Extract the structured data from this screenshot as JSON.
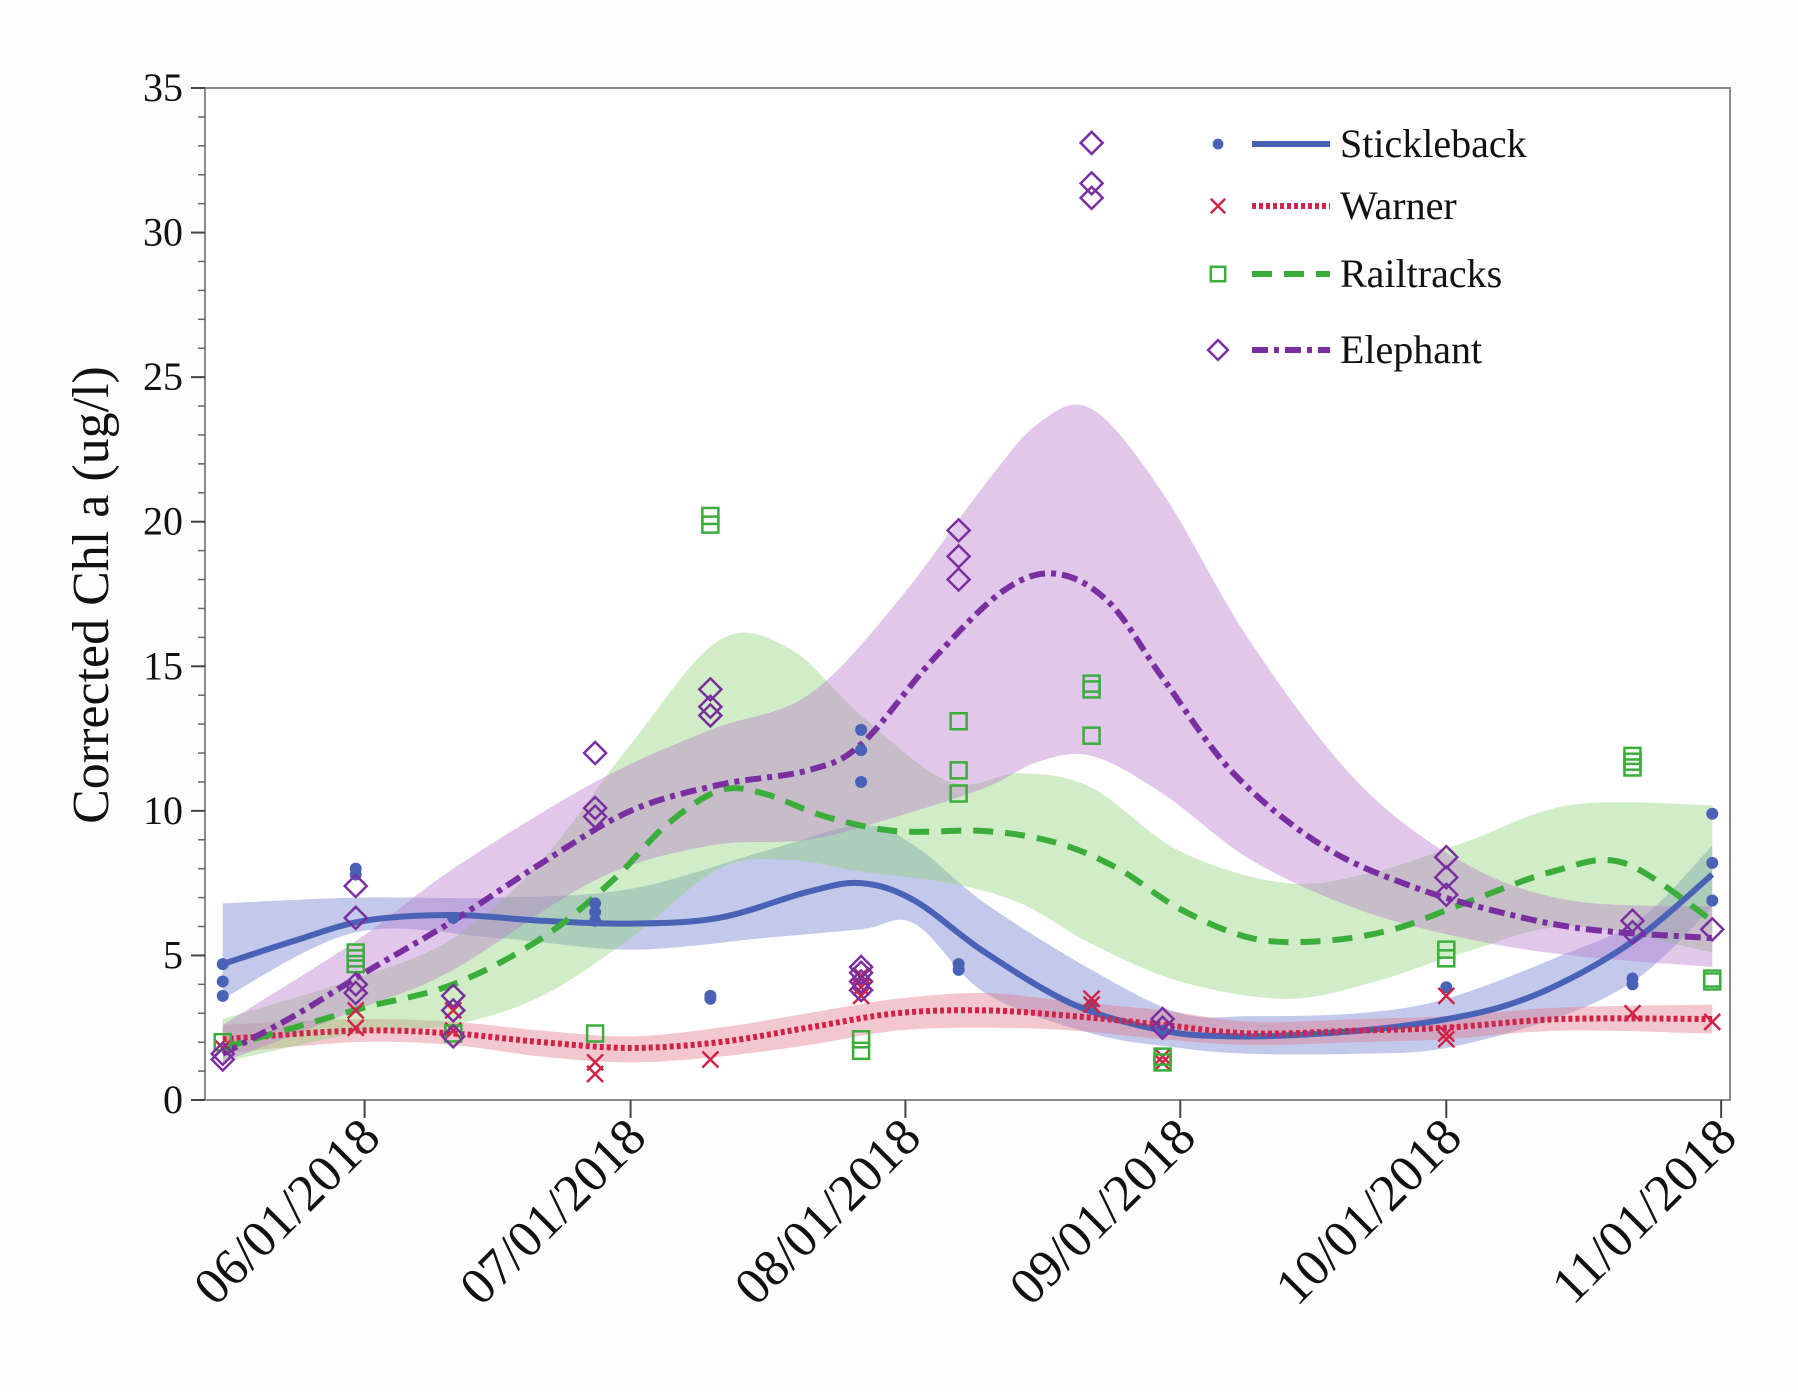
{
  "chart_data": {
    "type": "scatter",
    "title": "",
    "xlabel": "",
    "ylabel": "Corrected Chl a (ug/l)",
    "ylim": [
      0,
      35
    ],
    "xlim_days": [
      -18,
      154
    ],
    "x_ticks": [
      {
        "label": "06/01/2018",
        "day": 0
      },
      {
        "label": "07/01/2018",
        "day": 30
      },
      {
        "label": "08/01/2018",
        "day": 61
      },
      {
        "label": "09/01/2018",
        "day": 92
      },
      {
        "label": "10/01/2018",
        "day": 122
      },
      {
        "label": "11/01/2018",
        "day": 153
      }
    ],
    "y_ticks": [
      "0",
      "5",
      "10",
      "15",
      "20",
      "25",
      "30",
      "35"
    ],
    "legend_position": "top-right",
    "series": [
      {
        "name": "Stickleback",
        "color": "#4a62b5",
        "band_color": "#6f7fd0",
        "marker": "dot",
        "line_style": "solid",
        "points": [
          [
            -16,
            4.7
          ],
          [
            -16,
            4.1
          ],
          [
            -16,
            3.6
          ],
          [
            -1,
            8.0
          ],
          [
            -1,
            7.8
          ],
          [
            10,
            6.3
          ],
          [
            26,
            6.8
          ],
          [
            26,
            6.5
          ],
          [
            26,
            6.2
          ],
          [
            39,
            3.6
          ],
          [
            39,
            3.5
          ],
          [
            56,
            12.8
          ],
          [
            56,
            12.1
          ],
          [
            56,
            11.0
          ],
          [
            67,
            4.7
          ],
          [
            67,
            4.5
          ],
          [
            82,
            3.3
          ],
          [
            90,
            2.4
          ],
          [
            122,
            3.9
          ],
          [
            143,
            4.2
          ],
          [
            143,
            4.0
          ],
          [
            152,
            9.9
          ],
          [
            152,
            8.2
          ],
          [
            152,
            6.9
          ]
        ],
        "fit": [
          [
            -16,
            4.7
          ],
          [
            -8,
            5.5
          ],
          [
            0,
            6.2
          ],
          [
            10,
            6.4
          ],
          [
            20,
            6.2
          ],
          [
            30,
            6.1
          ],
          [
            40,
            6.3
          ],
          [
            50,
            7.2
          ],
          [
            56,
            7.5
          ],
          [
            62,
            6.9
          ],
          [
            70,
            5.1
          ],
          [
            80,
            3.3
          ],
          [
            90,
            2.4
          ],
          [
            98,
            2.2
          ],
          [
            108,
            2.3
          ],
          [
            118,
            2.6
          ],
          [
            128,
            3.2
          ],
          [
            136,
            4.2
          ],
          [
            144,
            5.7
          ],
          [
            152,
            7.8
          ]
        ],
        "band": [
          [
            -16,
            3.5,
            6.8
          ],
          [
            -1,
            5.8,
            7.0
          ],
          [
            15,
            5.6,
            7.0
          ],
          [
            30,
            5.2,
            7.3
          ],
          [
            45,
            5.6,
            8.6
          ],
          [
            56,
            5.9,
            9.5
          ],
          [
            62,
            6.1,
            8.8
          ],
          [
            70,
            3.7,
            6.8
          ],
          [
            82,
            2.3,
            4.5
          ],
          [
            92,
            1.8,
            3.0
          ],
          [
            100,
            1.6,
            2.9
          ],
          [
            112,
            1.6,
            3.0
          ],
          [
            122,
            1.8,
            3.5
          ],
          [
            135,
            2.9,
            5.0
          ],
          [
            144,
            4.3,
            6.3
          ],
          [
            152,
            6.7,
            8.8
          ]
        ]
      },
      {
        "name": "Warner",
        "color": "#cf2448",
        "band_color": "#e07a8c",
        "marker": "x",
        "line_style": "dotted",
        "points": [
          [
            -16,
            1.8
          ],
          [
            -1,
            3.1
          ],
          [
            -1,
            2.5
          ],
          [
            10,
            3.1
          ],
          [
            10,
            2.4
          ],
          [
            26,
            1.3
          ],
          [
            26,
            0.9
          ],
          [
            39,
            1.4
          ],
          [
            56,
            4.3
          ],
          [
            56,
            3.9
          ],
          [
            56,
            3.6
          ],
          [
            82,
            3.5
          ],
          [
            82,
            3.3
          ],
          [
            90,
            1.5
          ],
          [
            90,
            1.3
          ],
          [
            122,
            3.6
          ],
          [
            122,
            2.3
          ],
          [
            122,
            2.1
          ],
          [
            143,
            3.0
          ],
          [
            152,
            2.7
          ]
        ],
        "fit": [
          [
            -16,
            2.1
          ],
          [
            -1,
            2.4
          ],
          [
            10,
            2.3
          ],
          [
            20,
            2.0
          ],
          [
            30,
            1.8
          ],
          [
            40,
            2.0
          ],
          [
            50,
            2.5
          ],
          [
            60,
            3.0
          ],
          [
            70,
            3.1
          ],
          [
            80,
            2.9
          ],
          [
            90,
            2.6
          ],
          [
            100,
            2.3
          ],
          [
            112,
            2.4
          ],
          [
            122,
            2.5
          ],
          [
            135,
            2.8
          ],
          [
            152,
            2.8
          ]
        ],
        "band": [
          [
            -16,
            1.6,
            2.6
          ],
          [
            -1,
            2.0,
            2.8
          ],
          [
            10,
            1.9,
            2.7
          ],
          [
            20,
            1.5,
            2.4
          ],
          [
            30,
            1.3,
            2.2
          ],
          [
            40,
            1.5,
            2.5
          ],
          [
            50,
            1.9,
            3.0
          ],
          [
            60,
            2.4,
            3.5
          ],
          [
            70,
            2.5,
            3.7
          ],
          [
            80,
            2.4,
            3.4
          ],
          [
            90,
            2.1,
            3.1
          ],
          [
            100,
            1.9,
            2.7
          ],
          [
            112,
            2.0,
            2.8
          ],
          [
            122,
            2.1,
            2.9
          ],
          [
            135,
            2.4,
            3.2
          ],
          [
            152,
            2.3,
            3.3
          ]
        ]
      },
      {
        "name": "Railtracks",
        "color": "#3aad3a",
        "band_color": "#8fd37a",
        "marker": "square",
        "line_style": "dashed",
        "points": [
          [
            -16,
            2.0
          ],
          [
            -1,
            5.1
          ],
          [
            -1,
            4.9
          ],
          [
            -1,
            4.7
          ],
          [
            10,
            2.3
          ],
          [
            26,
            2.3
          ],
          [
            39,
            20.2
          ],
          [
            39,
            19.9
          ],
          [
            56,
            2.1
          ],
          [
            56,
            1.7
          ],
          [
            67,
            13.1
          ],
          [
            67,
            11.4
          ],
          [
            67,
            10.6
          ],
          [
            82,
            14.4
          ],
          [
            82,
            14.2
          ],
          [
            82,
            12.6
          ],
          [
            90,
            1.5
          ],
          [
            90,
            1.3
          ],
          [
            122,
            5.2
          ],
          [
            122,
            4.9
          ],
          [
            143,
            11.9
          ],
          [
            143,
            11.7
          ],
          [
            143,
            11.5
          ],
          [
            152,
            4.2
          ],
          [
            152,
            4.1
          ]
        ],
        "fit": [
          [
            -16,
            1.8
          ],
          [
            -8,
            2.5
          ],
          [
            0,
            3.2
          ],
          [
            10,
            4.0
          ],
          [
            20,
            5.6
          ],
          [
            28,
            7.6
          ],
          [
            34,
            9.5
          ],
          [
            40,
            10.7
          ],
          [
            45,
            10.6
          ],
          [
            52,
            9.8
          ],
          [
            60,
            9.3
          ],
          [
            70,
            9.3
          ],
          [
            78,
            8.9
          ],
          [
            85,
            8.0
          ],
          [
            92,
            6.6
          ],
          [
            100,
            5.6
          ],
          [
            108,
            5.5
          ],
          [
            116,
            5.9
          ],
          [
            124,
            6.8
          ],
          [
            134,
            7.9
          ],
          [
            142,
            8.2
          ],
          [
            152,
            6.2
          ]
        ],
        "band": [
          [
            -16,
            1.3,
            2.8
          ],
          [
            -1,
            2.3,
            4.2
          ],
          [
            10,
            2.6,
            5.6
          ],
          [
            20,
            3.6,
            8.3
          ],
          [
            30,
            5.6,
            12.3
          ],
          [
            40,
            8.0,
            15.9
          ],
          [
            48,
            8.3,
            15.6
          ],
          [
            56,
            7.9,
            13.3
          ],
          [
            66,
            7.5,
            11.0
          ],
          [
            74,
            6.8,
            11.3
          ],
          [
            82,
            5.4,
            10.8
          ],
          [
            92,
            4.1,
            8.6
          ],
          [
            104,
            3.5,
            7.5
          ],
          [
            114,
            4.1,
            7.9
          ],
          [
            124,
            5.1,
            8.9
          ],
          [
            136,
            6.0,
            10.2
          ],
          [
            152,
            5.1,
            10.2
          ]
        ]
      },
      {
        "name": "Elephant",
        "color": "#7a2fa0",
        "band_color": "#b87dcc",
        "marker": "diamond",
        "line_style": "dash-dot",
        "points": [
          [
            -16,
            1.6
          ],
          [
            -16,
            1.4
          ],
          [
            -1,
            7.4
          ],
          [
            -1,
            6.3
          ],
          [
            -1,
            4.0
          ],
          [
            -1,
            3.7
          ],
          [
            10,
            3.6
          ],
          [
            10,
            3.1
          ],
          [
            10,
            2.2
          ],
          [
            26,
            12.0
          ],
          [
            26,
            10.1
          ],
          [
            26,
            9.8
          ],
          [
            39,
            14.2
          ],
          [
            39,
            13.6
          ],
          [
            39,
            13.3
          ],
          [
            56,
            4.6
          ],
          [
            56,
            4.4
          ],
          [
            56,
            4.1
          ],
          [
            56,
            3.8
          ],
          [
            67,
            19.7
          ],
          [
            67,
            18.8
          ],
          [
            67,
            18.0
          ],
          [
            82,
            33.1
          ],
          [
            82,
            31.7
          ],
          [
            82,
            31.2
          ],
          [
            90,
            2.8
          ],
          [
            90,
            2.5
          ],
          [
            122,
            8.4
          ],
          [
            122,
            7.7
          ],
          [
            122,
            7.1
          ],
          [
            143,
            6.2
          ],
          [
            143,
            5.8
          ],
          [
            152,
            5.9
          ]
        ],
        "fit": [
          [
            -16,
            1.6
          ],
          [
            -8,
            2.9
          ],
          [
            0,
            4.4
          ],
          [
            10,
            6.2
          ],
          [
            20,
            8.2
          ],
          [
            30,
            10.0
          ],
          [
            40,
            10.9
          ],
          [
            50,
            11.4
          ],
          [
            56,
            12.3
          ],
          [
            64,
            15.2
          ],
          [
            72,
            17.6
          ],
          [
            78,
            18.2
          ],
          [
            84,
            17.2
          ],
          [
            90,
            14.6
          ],
          [
            98,
            11.3
          ],
          [
            108,
            8.8
          ],
          [
            118,
            7.4
          ],
          [
            128,
            6.5
          ],
          [
            138,
            5.9
          ],
          [
            152,
            5.6
          ]
        ],
        "band": [
          [
            -16,
            1.3,
            2.6
          ],
          [
            -1,
            3.1,
            5.5
          ],
          [
            10,
            4.5,
            8.0
          ],
          [
            26,
            7.6,
            11.0
          ],
          [
            39,
            8.8,
            12.8
          ],
          [
            50,
            9.0,
            14.0
          ],
          [
            60,
            9.8,
            17.2
          ],
          [
            70,
            10.8,
            21.3
          ],
          [
            76,
            11.7,
            23.4
          ],
          [
            82,
            11.9,
            23.9
          ],
          [
            90,
            10.6,
            21.0
          ],
          [
            100,
            8.3,
            15.8
          ],
          [
            112,
            6.6,
            11.0
          ],
          [
            124,
            5.6,
            8.2
          ],
          [
            136,
            5.0,
            6.9
          ],
          [
            152,
            4.6,
            6.7
          ]
        ]
      }
    ]
  }
}
